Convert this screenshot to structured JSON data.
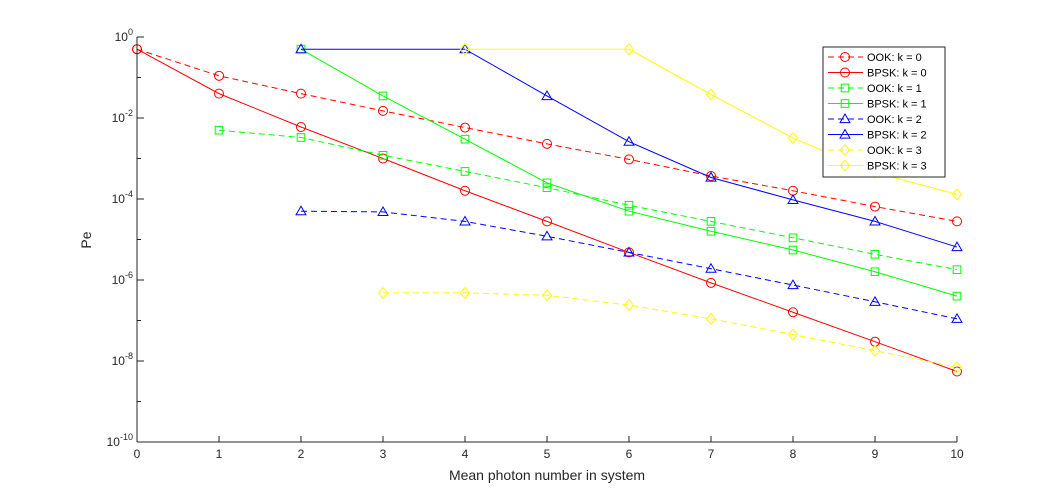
{
  "chart_data": {
    "type": "line",
    "xlabel": "Mean photon number in system",
    "ylabel": "Pe",
    "xlim": [
      0,
      10
    ],
    "ylim": [
      1e-10,
      1
    ],
    "y_scale": "log",
    "grid": false,
    "legend_position": "top-right",
    "x_ticks": [
      "0",
      "1",
      "2",
      "3",
      "4",
      "5",
      "6",
      "7",
      "8",
      "9",
      "10"
    ],
    "y_ticks": [
      {
        "base": "10",
        "exp": "0"
      },
      {
        "base": "10",
        "exp": "-2"
      },
      {
        "base": "10",
        "exp": "-4"
      },
      {
        "base": "10",
        "exp": "-6"
      },
      {
        "base": "10",
        "exp": "-8"
      },
      {
        "base": "10",
        "exp": "-10"
      }
    ],
    "series": [
      {
        "name": "OOK: k = 0",
        "color": "#ff0000",
        "dash": true,
        "marker": "circle",
        "x": [
          0,
          1,
          2,
          3,
          4,
          5,
          6,
          7,
          8,
          9,
          10
        ],
        "y": [
          0.5,
          0.11,
          0.04,
          0.015,
          0.0058,
          0.0023,
          0.00095,
          0.00037,
          0.00016,
          6.5e-05,
          2.8e-05
        ]
      },
      {
        "name": "BPSK: k = 0",
        "color": "#ff0000",
        "dash": false,
        "marker": "circle",
        "x": [
          0,
          1,
          2,
          3,
          4,
          5,
          6,
          7,
          8,
          9,
          10
        ],
        "y": [
          0.5,
          0.04,
          0.006,
          0.001,
          0.00016,
          2.8e-05,
          4.8e-06,
          8.5e-07,
          1.6e-07,
          3e-08,
          5.5e-09
        ]
      },
      {
        "name": "OOK: k = 1",
        "color": "#00ff00",
        "dash": true,
        "marker": "square",
        "x": [
          1,
          2,
          3,
          4,
          5,
          6,
          7,
          8,
          9,
          10
        ],
        "y": [
          0.005,
          0.0033,
          0.0012,
          0.00048,
          0.00019,
          7e-05,
          2.8e-05,
          1.1e-05,
          4.3e-06,
          1.8e-06
        ]
      },
      {
        "name": "BPSK: k = 1",
        "color": "#00ff00",
        "dash": false,
        "marker": "square",
        "x": [
          2,
          3,
          4,
          5,
          6,
          7,
          8,
          9,
          10
        ],
        "y": [
          0.5,
          0.035,
          0.003,
          0.00025,
          5e-05,
          1.6e-05,
          5.5e-06,
          1.6e-06,
          4e-07
        ]
      },
      {
        "name": "OOK: k = 2",
        "color": "#0000ff",
        "dash": true,
        "marker": "triangle",
        "x": [
          2,
          3,
          4,
          5,
          6,
          7,
          8,
          9,
          10
        ],
        "y": [
          5e-05,
          4.8e-05,
          2.8e-05,
          1.2e-05,
          4.8e-06,
          1.9e-06,
          7.5e-07,
          2.9e-07,
          1.1e-07
        ]
      },
      {
        "name": "BPSK: k = 2",
        "color": "#0000ff",
        "dash": false,
        "marker": "triangle",
        "x": [
          2,
          4,
          5,
          6,
          7,
          8,
          9,
          10
        ],
        "y": [
          0.5,
          0.5,
          0.035,
          0.0026,
          0.00034,
          9.5e-05,
          2.8e-05,
          6.5e-06
        ]
      },
      {
        "name": "OOK: k = 3",
        "color": "#ffff00",
        "dash": true,
        "marker": "diamond",
        "x": [
          3,
          4,
          5,
          6,
          7,
          8,
          9,
          10
        ],
        "y": [
          4.8e-07,
          4.8e-07,
          4.2e-07,
          2.4e-07,
          1.1e-07,
          4.5e-08,
          1.8e-08,
          7e-09
        ]
      },
      {
        "name": "BPSK: k = 3",
        "color": "#ffff00",
        "dash": false,
        "marker": "diamond",
        "x": [
          4,
          6,
          7,
          8,
          9,
          10
        ],
        "y": [
          0.5,
          0.5,
          0.038,
          0.0032,
          0.00045,
          0.00013
        ]
      }
    ]
  }
}
